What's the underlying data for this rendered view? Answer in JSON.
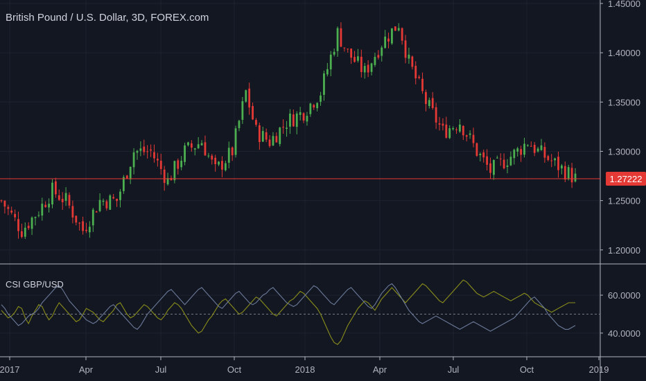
{
  "header": {
    "title": "British Pound / U.S. Dollar, 3D, FOREX.com"
  },
  "indicator": {
    "title": "CSI GBP/USD"
  },
  "colors": {
    "background": "#131722",
    "grid": "#1e2230",
    "axis_text": "#b2b5be",
    "up": "#26a69a",
    "up_candle": "#4caf50",
    "down": "#e53935",
    "price_line": "#e53935",
    "csi_line1": "#8b8f1a",
    "csi_line2": "#6b7a99",
    "separator": "#b2b5be"
  },
  "chart_data": [
    {
      "type": "candlestick",
      "title": "British Pound / U.S. Dollar, 3D, FOREX.com",
      "x_ticks": [
        "2017",
        "Apr",
        "Jul",
        "Oct",
        "2018",
        "Apr",
        "Jul",
        "Oct",
        "2019"
      ],
      "y_ticks": [
        "1.45000",
        "1.40000",
        "1.35000",
        "1.30000",
        "1.25000",
        "1.20000"
      ],
      "ylim": [
        1.19,
        1.45
      ],
      "last_price": 1.27222,
      "last_price_label": "1.27222",
      "grid": true,
      "close_anchors": [
        [
          0,
          1.25
        ],
        [
          6,
          1.22
        ],
        [
          11,
          1.24
        ],
        [
          15,
          1.26
        ],
        [
          19,
          1.25
        ],
        [
          24,
          1.22
        ],
        [
          29,
          1.25
        ],
        [
          34,
          1.25
        ],
        [
          39,
          1.3
        ],
        [
          44,
          1.3
        ],
        [
          49,
          1.27
        ],
        [
          54,
          1.3
        ],
        [
          59,
          1.31
        ],
        [
          63,
          1.28
        ],
        [
          68,
          1.3
        ],
        [
          72,
          1.36
        ],
        [
          75,
          1.32
        ],
        [
          79,
          1.31
        ],
        [
          84,
          1.33
        ],
        [
          89,
          1.34
        ],
        [
          94,
          1.36
        ],
        [
          99,
          1.42
        ],
        [
          102,
          1.4
        ],
        [
          107,
          1.38
        ],
        [
          112,
          1.41
        ],
        [
          117,
          1.43
        ],
        [
          120,
          1.39
        ],
        [
          125,
          1.35
        ],
        [
          130,
          1.32
        ],
        [
          135,
          1.33
        ],
        [
          140,
          1.3
        ],
        [
          144,
          1.28
        ],
        [
          148,
          1.29
        ],
        [
          152,
          1.3
        ],
        [
          155,
          1.31
        ],
        [
          158,
          1.3
        ],
        [
          162,
          1.29
        ],
        [
          166,
          1.28
        ],
        [
          170,
          1.27
        ]
      ],
      "n_candles": 170
    },
    {
      "type": "line",
      "title": "CSI GBP/USD",
      "y_ticks": [
        "60.0000",
        "40.0000"
      ],
      "ylim": [
        33,
        75
      ],
      "reference_line": 50,
      "series": [
        {
          "values": [
            52,
            50,
            48,
            49,
            51,
            54,
            53,
            48,
            45,
            49,
            52,
            55,
            54,
            50,
            47,
            49,
            53,
            56,
            54,
            52,
            50,
            48,
            46,
            47,
            50,
            53,
            52,
            51,
            49,
            47,
            46,
            48,
            50,
            52,
            55,
            56,
            53,
            50,
            48,
            49,
            51,
            53,
            55,
            54,
            52,
            50,
            48,
            47,
            49,
            52,
            54,
            56,
            55,
            53,
            50,
            47,
            44,
            42,
            40,
            41,
            44,
            47,
            49,
            52,
            55,
            57,
            58,
            56,
            54,
            52,
            50,
            51,
            53,
            55,
            57,
            59,
            58,
            56,
            54,
            52,
            50,
            49,
            51,
            53,
            55,
            57,
            58,
            60,
            62,
            61,
            59,
            57,
            55,
            53,
            50,
            46,
            42,
            38,
            35,
            34,
            36,
            40,
            44,
            47,
            50,
            53,
            55,
            57,
            56,
            54,
            52,
            55,
            58,
            60,
            62,
            64,
            62,
            60,
            58,
            56,
            58,
            60,
            62,
            64,
            66,
            65,
            63,
            61,
            59,
            57,
            56,
            58,
            60,
            62,
            64,
            66,
            68,
            67,
            65,
            63,
            61,
            60,
            59,
            60,
            61,
            62,
            61,
            60,
            59,
            58,
            57,
            58,
            59,
            60,
            61,
            60,
            58,
            56,
            55,
            54,
            53,
            52,
            51,
            52,
            53,
            54,
            55,
            56,
            56,
            56
          ]
        },
        {
          "values": [
            55,
            53,
            50,
            48,
            46,
            44,
            45,
            47,
            49,
            50,
            51,
            53,
            56,
            58,
            60,
            62,
            64,
            65,
            63,
            60,
            57,
            55,
            53,
            51,
            49,
            47,
            46,
            45,
            46,
            48,
            50,
            52,
            54,
            55,
            53,
            51,
            49,
            47,
            45,
            43,
            42,
            44,
            47,
            50,
            52,
            54,
            56,
            58,
            60,
            62,
            63,
            61,
            59,
            57,
            55,
            57,
            59,
            61,
            63,
            64,
            62,
            60,
            58,
            56,
            54,
            53,
            55,
            57,
            59,
            61,
            62,
            60,
            58,
            56,
            55,
            56,
            58,
            60,
            61,
            63,
            64,
            62,
            60,
            58,
            56,
            55,
            54,
            55,
            57,
            59,
            61,
            63,
            65,
            64,
            62,
            60,
            58,
            56,
            55,
            57,
            59,
            61,
            63,
            64,
            62,
            60,
            58,
            56,
            54,
            53,
            55,
            58,
            61,
            63,
            65,
            66,
            64,
            61,
            58,
            55,
            52,
            50,
            48,
            46,
            45,
            46,
            47,
            48,
            49,
            48,
            47,
            46,
            45,
            44,
            43,
            42,
            43,
            44,
            45,
            46,
            45,
            44,
            43,
            42,
            41,
            42,
            43,
            44,
            45,
            46,
            47,
            48,
            50,
            52,
            54,
            56,
            58,
            59,
            57,
            55,
            53,
            50,
            48,
            46,
            44,
            43,
            42,
            42,
            43,
            44
          ]
        }
      ]
    }
  ]
}
